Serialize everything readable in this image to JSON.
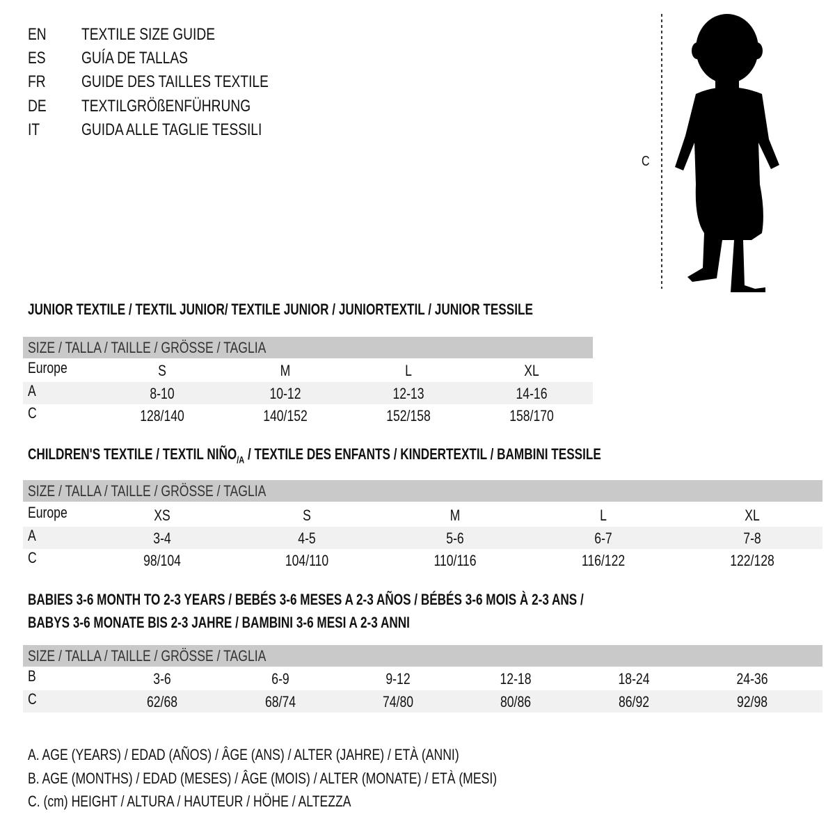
{
  "languages": [
    {
      "code": "EN",
      "title": "TEXTILE SIZE GUIDE"
    },
    {
      "code": "ES",
      "title": "GUÍA DE TALLAS"
    },
    {
      "code": "FR",
      "title": "GUIDE DES TAILLES TEXTILE"
    },
    {
      "code": "DE",
      "title": "TEXTILGRÖßENFÜHRUNG"
    },
    {
      "code": "IT",
      "title": "GUIDA ALLE TAGLIE TESSILI"
    }
  ],
  "figure": {
    "icon": "child-silhouette-icon",
    "measure_label": "C"
  },
  "size_header": "SIZE / TALLA / TAILLE / GRÖSSE / TAGLIA",
  "junior": {
    "title": "JUNIOR TEXTILE / TEXTIL JUNIOR/ TEXTILE JUNIOR / JUNIORTEXTIL / JUNIOR TESSILE",
    "rows": [
      {
        "label": "Europe",
        "values": [
          "S",
          "M",
          "L",
          "XL"
        ]
      },
      {
        "label": "A",
        "values": [
          "8-10",
          "10-12",
          "12-13",
          "14-16"
        ]
      },
      {
        "label": "C",
        "values": [
          "128/140",
          "140/152",
          "152/158",
          "158/170"
        ]
      }
    ]
  },
  "children": {
    "title": "CHILDREN'S TEXTILE / TEXTIL NIÑO",
    "title_sub": "/A",
    "title_rest": " / TEXTILE DES ENFANTS / KINDERTEXTIL / BAMBINI TESSILE",
    "rows": [
      {
        "label": "Europe",
        "values": [
          "XS",
          "S",
          "M",
          "L",
          "XL"
        ]
      },
      {
        "label": "A",
        "values": [
          "3-4",
          "4-5",
          "5-6",
          "6-7",
          "7-8"
        ]
      },
      {
        "label": "C",
        "values": [
          "98/104",
          "104/110",
          "110/116",
          "116/122",
          "122/128"
        ]
      }
    ]
  },
  "babies": {
    "title_line1": "BABIES 3-6 MONTH TO 2-3 YEARS / BEBÉS 3-6 MESES A 2-3 AÑOS / BÉBÉS 3-6 MOIS À 2-3 ANS /",
    "title_line2": "BABYS 3-6 MONATE BIS 2-3 JAHRE / BAMBINI 3-6 MESI A 2-3 ANNI",
    "rows": [
      {
        "label": "B",
        "values": [
          "3-6",
          "6-9",
          "9-12",
          "12-18",
          "18-24",
          "24-36"
        ]
      },
      {
        "label": "C",
        "values": [
          "62/68",
          "68/74",
          "74/80",
          "80/86",
          "86/92",
          "92/98"
        ]
      }
    ]
  },
  "legend": [
    "A. AGE (YEARS) / EDAD (AÑOS) / ÂGE (ANS) / ALTER (JAHRE) / ETÀ (ANNI)",
    "B. AGE (MONTHS) / EDAD (MESES) / ÂGE (MOIS) / ALTER (MONATE) / ETÀ (MESI)",
    "C. (cm) HEIGHT / ALTURA / HAUTEUR / HÖHE / ALTEZZA"
  ]
}
